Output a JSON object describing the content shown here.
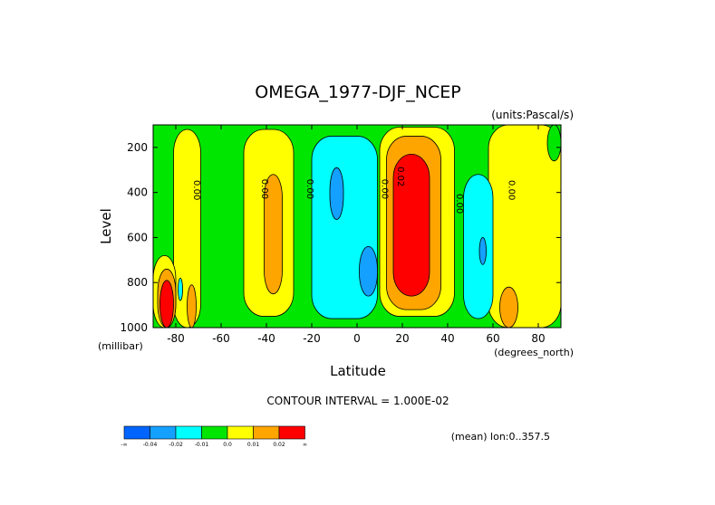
{
  "chart_data": {
    "type": "heatmap",
    "title": "OMEGA_1977-DJF_NCEP",
    "units_note": "(units:Pascal/s)",
    "xlabel": "Latitude",
    "ylabel": "Level",
    "x_units": "(degrees_north)",
    "y_units": "(millibar)",
    "xlim": [
      -90,
      90
    ],
    "ylim": [
      1000,
      100
    ],
    "x_ticks": [
      "-80",
      "-60",
      "-40",
      "-20",
      "0",
      "20",
      "40",
      "60",
      "80"
    ],
    "x_tick_values": [
      -80,
      -60,
      -40,
      -20,
      0,
      20,
      40,
      60,
      80
    ],
    "y_ticks": [
      "200",
      "400",
      "600",
      "800",
      "1000"
    ],
    "y_tick_values": [
      200,
      400,
      600,
      800,
      1000
    ],
    "contour_interval_text": "CONTOUR INTERVAL = 1.000E-02",
    "mean_note": "(mean) lon:0..357.5",
    "contour_labels": [
      {
        "text": "0.00",
        "x": -72,
        "y": 390
      },
      {
        "text": "0.00",
        "x": -42,
        "y": 385
      },
      {
        "text": "0.00",
        "x": -22,
        "y": 385
      },
      {
        "text": "0.00",
        "x": 11,
        "y": 385
      },
      {
        "text": "0.02",
        "x": 18,
        "y": 330
      },
      {
        "text": "0.00",
        "x": 44,
        "y": 450
      },
      {
        "text": "0.00",
        "x": 67,
        "y": 390
      }
    ],
    "colorbar": {
      "colors": [
        "#0064ff",
        "#14a0ff",
        "#00ffff",
        "#00e600",
        "#ffff00",
        "#ffa500",
        "#ff0000"
      ],
      "labels": [
        "-∞",
        "-0.04",
        "-0.02",
        "-0.01",
        "0.0",
        "0.01",
        "0.02",
        "∞"
      ]
    },
    "regions": [
      {
        "color": "#00e600",
        "lat": [
          -90,
          90
        ],
        "lev": [
          100,
          1000
        ]
      },
      {
        "color": "#ffff00",
        "lat": [
          -81,
          -69
        ],
        "lev": [
          120,
          1000
        ]
      },
      {
        "color": "#ffff00",
        "lat": [
          -90,
          -80
        ],
        "lev": [
          680,
          1000
        ]
      },
      {
        "color": "#ffa500",
        "lat": [
          -88,
          -80
        ],
        "lev": [
          740,
          1000
        ]
      },
      {
        "color": "#ff0000",
        "lat": [
          -87,
          -81
        ],
        "lev": [
          790,
          1000
        ]
      },
      {
        "color": "#ffa500",
        "lat": [
          -75,
          -71
        ],
        "lev": [
          810,
          1000
        ]
      },
      {
        "color": "#ffff00",
        "lat": [
          -50,
          -28
        ],
        "lev": [
          120,
          950
        ]
      },
      {
        "color": "#ffa500",
        "lat": [
          -41,
          -33
        ],
        "lev": [
          320,
          850
        ]
      },
      {
        "color": "#ffff00",
        "lat": [
          10,
          43
        ],
        "lev": [
          110,
          950
        ]
      },
      {
        "color": "#ffa500",
        "lat": [
          13,
          37
        ],
        "lev": [
          150,
          920
        ]
      },
      {
        "color": "#ff0000",
        "lat": [
          16,
          32
        ],
        "lev": [
          230,
          860
        ]
      },
      {
        "color": "#ffff00",
        "lat": [
          58,
          90
        ],
        "lev": [
          100,
          1000
        ]
      },
      {
        "color": "#00e600",
        "lat": [
          84,
          90
        ],
        "lev": [
          100,
          260
        ]
      },
      {
        "color": "#ffa500",
        "lat": [
          63,
          71
        ],
        "lev": [
          820,
          1000
        ]
      },
      {
        "color": "#00ffff",
        "lat": [
          -20,
          9
        ],
        "lev": [
          150,
          960
        ]
      },
      {
        "color": "#14a0ff",
        "lat": [
          -12,
          -6
        ],
        "lev": [
          290,
          520
        ]
      },
      {
        "color": "#14a0ff",
        "lat": [
          1,
          9
        ],
        "lev": [
          640,
          860
        ]
      },
      {
        "color": "#00ffff",
        "lat": [
          47,
          60
        ],
        "lev": [
          320,
          960
        ]
      },
      {
        "color": "#14a0ff",
        "lat": [
          54,
          57
        ],
        "lev": [
          600,
          720
        ]
      },
      {
        "color": "#00ffff",
        "lat": [
          -79,
          -77
        ],
        "lev": [
          780,
          880
        ]
      }
    ]
  }
}
